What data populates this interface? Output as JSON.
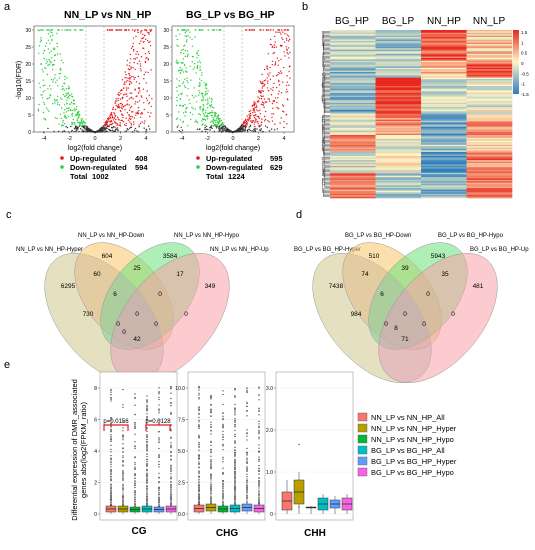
{
  "panels": {
    "a": "a",
    "b": "b",
    "c": "c",
    "d": "d",
    "e": "e"
  },
  "volcano": {
    "ylabel": "-log10(FDR)",
    "xlabel": "log2(fold change)",
    "left": {
      "title_a": "NN_LP",
      "title_vs": "vs",
      "title_b": "NN_HP",
      "up_label": "Up-regulated",
      "up_value": "408",
      "down_label": "Down-regulated",
      "down_value": "594",
      "total_label": "Total",
      "total_value": "1002",
      "yticks": [
        "0",
        "5",
        "10",
        "15",
        "20",
        "25",
        "30"
      ],
      "xticks": [
        "-4",
        "-2",
        "0",
        "2",
        "4"
      ]
    },
    "right": {
      "title_a": "BG_LP",
      "title_vs": "vs",
      "title_b": "BG_HP",
      "up_label": "Up-regulated",
      "up_value": "595",
      "down_label": "Down-regulated",
      "down_value": "629",
      "total_label": "Total",
      "total_value": "1224",
      "yticks": [
        "0",
        "5",
        "10",
        "15",
        "20",
        "25",
        "30"
      ],
      "xticks": [
        "-4",
        "-2",
        "0",
        "2",
        "4"
      ]
    },
    "colors": {
      "up": "#e41a1c",
      "down": "#2ecc40",
      "ns": "#333333"
    }
  },
  "heatmap": {
    "columns": [
      "BG_HP",
      "BG_LP",
      "NN_HP",
      "NN_LP"
    ],
    "legend_ticks": [
      "1.5",
      "1",
      "0.5",
      "0",
      "-0.5",
      "-1",
      "-1.5"
    ],
    "colors": {
      "high": "#e8281e",
      "mid": "#fdf6c4",
      "low": "#2f7ec0"
    }
  },
  "venn_c": {
    "sets": [
      "NN_LP vs NN_HP-Hyper",
      "NN_LP vs NN_HP-Down",
      "NN_LP vs NN_HP-Hypo",
      "NN_LP vs NN_HP-Up"
    ],
    "counts": {
      "a_only": "6295",
      "b_only": "604",
      "c_only": "3584",
      "d_only": "349",
      "ab": "60",
      "bc": "25",
      "cd": "17",
      "ad": "730",
      "abc": "6",
      "bcd": "0",
      "acd": "0",
      "abd": "0",
      "abcd": "0",
      "ac": "0",
      "bd": "0",
      "bottom": "42"
    }
  },
  "venn_d": {
    "sets": [
      "BG_LP vs BG_HP-Hyper",
      "BG_LP vs BG_HP-Down",
      "BG_LP vs BG_HP-Hypo",
      "BG_LP vs BG_HP-Up"
    ],
    "counts": {
      "a_only": "7438",
      "b_only": "510",
      "c_only": "5943",
      "d_only": "481",
      "ab": "74",
      "bc": "39",
      "cd": "35",
      "ad": "984",
      "abc": "6",
      "bcd": "0",
      "acd": "0",
      "abd": "0",
      "abcd": "0",
      "ac": "0",
      "bd": "8",
      "bottom": "71"
    }
  },
  "boxplot": {
    "ylabel_1": "Differential expression of DMR_associated",
    "ylabel_2": "genes abs(log2(FPKM_ratio)",
    "panels": [
      "CG",
      "CHG",
      "CHH"
    ],
    "pvalues": [
      "p=0.0156",
      "p=0.0128"
    ],
    "legend": [
      {
        "label": "NN_LP vs NN_HP_All",
        "color": "#f8766d"
      },
      {
        "label": "NN_LP vs NN_HP_Hyper",
        "color": "#b79f00"
      },
      {
        "label": "NN_LP vs NN_HP_Hypo",
        "color": "#00ba38"
      },
      {
        "label": "BG_LP vs BG_HP_All",
        "color": "#00bfc4"
      },
      {
        "label": "BG_LP vs BG_HP_Hyper",
        "color": "#619cff"
      },
      {
        "label": "BG_LP vs BG_HP_Hypo",
        "color": "#f564e3"
      }
    ],
    "yticks_cg": [
      "0",
      "2",
      "4",
      "6",
      "8"
    ],
    "yticks_chg": [
      "0.0",
      "2.5",
      "5.0",
      "7.5",
      "10.0"
    ],
    "yticks_chh": [
      "0",
      "1.0",
      "2.0",
      "3.0"
    ]
  }
}
